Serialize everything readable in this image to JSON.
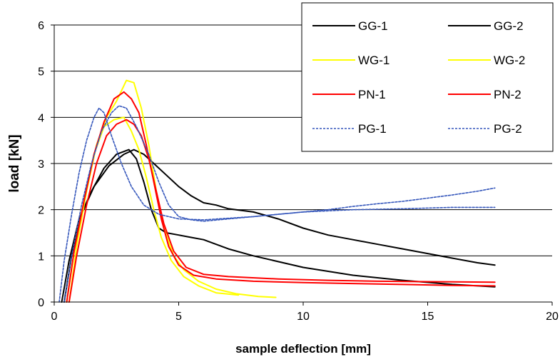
{
  "chart_data": {
    "type": "line",
    "title": "",
    "xlabel": "sample deflection [mm]",
    "ylabel": "load [kN]",
    "xlim": [
      0,
      20
    ],
    "ylim": [
      0,
      6
    ],
    "x_ticks": [
      "0",
      "5",
      "10",
      "15",
      "20"
    ],
    "y_ticks": [
      "0",
      "1",
      "2",
      "3",
      "4",
      "5",
      "6"
    ],
    "grid": "horizontal",
    "legend_position": "top-right",
    "series": [
      {
        "name": "GG-1",
        "color": "#000000",
        "dash": "solid",
        "points": [
          [
            0.3,
            0
          ],
          [
            0.6,
            0.9
          ],
          [
            1.0,
            1.8
          ],
          [
            1.5,
            2.4
          ],
          [
            2.0,
            2.9
          ],
          [
            2.5,
            3.2
          ],
          [
            3.0,
            3.3
          ],
          [
            3.3,
            3.1
          ],
          [
            3.6,
            2.6
          ],
          [
            3.9,
            2.0
          ],
          [
            4.2,
            1.6
          ],
          [
            4.5,
            1.5
          ],
          [
            5.0,
            1.45
          ],
          [
            5.5,
            1.4
          ],
          [
            6.0,
            1.35
          ],
          [
            7.0,
            1.15
          ],
          [
            8.0,
            1.0
          ],
          [
            10.0,
            0.75
          ],
          [
            12.0,
            0.58
          ],
          [
            14.0,
            0.47
          ],
          [
            16.0,
            0.38
          ],
          [
            17.7,
            0.33
          ]
        ]
      },
      {
        "name": "GG-2",
        "color": "#000000",
        "dash": "solid",
        "points": [
          [
            0.4,
            0
          ],
          [
            0.7,
            1.0
          ],
          [
            1.1,
            1.9
          ],
          [
            1.6,
            2.5
          ],
          [
            2.2,
            2.95
          ],
          [
            2.8,
            3.2
          ],
          [
            3.2,
            3.3
          ],
          [
            3.6,
            3.2
          ],
          [
            4.0,
            3.0
          ],
          [
            4.5,
            2.75
          ],
          [
            5.0,
            2.5
          ],
          [
            5.5,
            2.3
          ],
          [
            6.0,
            2.15
          ],
          [
            6.5,
            2.1
          ],
          [
            7.0,
            2.02
          ],
          [
            8.0,
            1.95
          ],
          [
            9.0,
            1.8
          ],
          [
            10.0,
            1.6
          ],
          [
            11.0,
            1.45
          ],
          [
            12.0,
            1.35
          ],
          [
            13.0,
            1.25
          ],
          [
            14.0,
            1.15
          ],
          [
            15.0,
            1.05
          ],
          [
            16.0,
            0.95
          ],
          [
            17.0,
            0.85
          ],
          [
            17.7,
            0.8
          ]
        ]
      },
      {
        "name": "WG-1",
        "color": "#ffff00",
        "dash": "solid",
        "points": [
          [
            0.6,
            0
          ],
          [
            0.9,
            1.2
          ],
          [
            1.3,
            2.4
          ],
          [
            1.7,
            3.4
          ],
          [
            2.1,
            4.0
          ],
          [
            2.5,
            4.35
          ],
          [
            2.9,
            4.8
          ],
          [
            3.2,
            4.75
          ],
          [
            3.5,
            4.2
          ],
          [
            3.8,
            3.4
          ],
          [
            4.1,
            2.4
          ],
          [
            4.4,
            1.6
          ],
          [
            4.8,
            1.0
          ],
          [
            5.2,
            0.7
          ],
          [
            5.8,
            0.45
          ],
          [
            6.5,
            0.28
          ],
          [
            7.3,
            0.18
          ],
          [
            8.2,
            0.12
          ],
          [
            8.9,
            0.1
          ]
        ]
      },
      {
        "name": "WG-2",
        "color": "#ffff00",
        "dash": "solid",
        "points": [
          [
            0.5,
            0
          ],
          [
            0.8,
            1.1
          ],
          [
            1.2,
            2.2
          ],
          [
            1.6,
            3.2
          ],
          [
            2.0,
            3.8
          ],
          [
            2.4,
            3.95
          ],
          [
            2.8,
            4.0
          ],
          [
            3.1,
            3.7
          ],
          [
            3.4,
            3.3
          ],
          [
            3.7,
            2.7
          ],
          [
            4.0,
            2.0
          ],
          [
            4.3,
            1.4
          ],
          [
            4.7,
            0.9
          ],
          [
            5.2,
            0.55
          ],
          [
            5.8,
            0.35
          ],
          [
            6.5,
            0.2
          ],
          [
            7.4,
            0.15
          ]
        ]
      },
      {
        "name": "PN-1",
        "color": "#ff0000",
        "dash": "solid",
        "points": [
          [
            0.5,
            0
          ],
          [
            0.8,
            1.1
          ],
          [
            1.2,
            2.2
          ],
          [
            1.6,
            3.2
          ],
          [
            2.0,
            3.9
          ],
          [
            2.4,
            4.4
          ],
          [
            2.8,
            4.55
          ],
          [
            3.1,
            4.4
          ],
          [
            3.4,
            4.1
          ],
          [
            3.7,
            3.4
          ],
          [
            4.0,
            2.6
          ],
          [
            4.3,
            1.8
          ],
          [
            4.6,
            1.2
          ],
          [
            5.0,
            0.8
          ],
          [
            5.6,
            0.58
          ],
          [
            6.5,
            0.5
          ],
          [
            8.0,
            0.45
          ],
          [
            10.0,
            0.42
          ],
          [
            12.0,
            0.4
          ],
          [
            14.0,
            0.38
          ],
          [
            16.0,
            0.36
          ],
          [
            17.7,
            0.35
          ]
        ]
      },
      {
        "name": "PN-2",
        "color": "#ff0000",
        "dash": "solid",
        "points": [
          [
            0.6,
            0
          ],
          [
            0.9,
            1.0
          ],
          [
            1.3,
            2.1
          ],
          [
            1.7,
            3.0
          ],
          [
            2.1,
            3.6
          ],
          [
            2.5,
            3.85
          ],
          [
            2.9,
            3.95
          ],
          [
            3.2,
            3.85
          ],
          [
            3.5,
            3.6
          ],
          [
            3.8,
            3.1
          ],
          [
            4.1,
            2.4
          ],
          [
            4.4,
            1.7
          ],
          [
            4.8,
            1.1
          ],
          [
            5.3,
            0.75
          ],
          [
            6.0,
            0.6
          ],
          [
            7.0,
            0.55
          ],
          [
            9.0,
            0.5
          ],
          [
            11.0,
            0.47
          ],
          [
            13.0,
            0.45
          ],
          [
            15.0,
            0.44
          ],
          [
            17.7,
            0.43
          ]
        ]
      },
      {
        "name": "PG-1",
        "color": "#3355bb",
        "dash": "dashed",
        "points": [
          [
            0.2,
            0
          ],
          [
            0.4,
            0.9
          ],
          [
            0.7,
            1.9
          ],
          [
            1.0,
            2.8
          ],
          [
            1.3,
            3.5
          ],
          [
            1.6,
            4.0
          ],
          [
            1.8,
            4.2
          ],
          [
            2.0,
            4.1
          ],
          [
            2.3,
            3.6
          ],
          [
            2.7,
            3.0
          ],
          [
            3.1,
            2.5
          ],
          [
            3.6,
            2.1
          ],
          [
            4.2,
            1.9
          ],
          [
            5.0,
            1.8
          ],
          [
            6.0,
            1.78
          ],
          [
            8.0,
            1.85
          ],
          [
            10.0,
            1.95
          ],
          [
            12.0,
            2.0
          ],
          [
            14.0,
            2.02
          ],
          [
            16.0,
            2.05
          ],
          [
            17.7,
            2.05
          ]
        ]
      },
      {
        "name": "PG-2",
        "color": "#3355bb",
        "dash": "dashed",
        "points": [
          [
            0.4,
            0
          ],
          [
            0.7,
            1.0
          ],
          [
            1.1,
            2.1
          ],
          [
            1.5,
            3.0
          ],
          [
            1.9,
            3.7
          ],
          [
            2.3,
            4.1
          ],
          [
            2.6,
            4.25
          ],
          [
            2.9,
            4.2
          ],
          [
            3.3,
            3.8
          ],
          [
            3.8,
            3.2
          ],
          [
            4.2,
            2.6
          ],
          [
            4.6,
            2.1
          ],
          [
            5.0,
            1.85
          ],
          [
            5.5,
            1.78
          ],
          [
            6.0,
            1.75
          ],
          [
            7.0,
            1.8
          ],
          [
            8.0,
            1.85
          ],
          [
            9.0,
            1.9
          ],
          [
            10.0,
            1.95
          ],
          [
            11.0,
            2.0
          ],
          [
            12.0,
            2.07
          ],
          [
            13.0,
            2.13
          ],
          [
            14.0,
            2.18
          ],
          [
            15.0,
            2.25
          ],
          [
            16.0,
            2.32
          ],
          [
            17.0,
            2.4
          ],
          [
            17.7,
            2.47
          ]
        ]
      }
    ]
  }
}
